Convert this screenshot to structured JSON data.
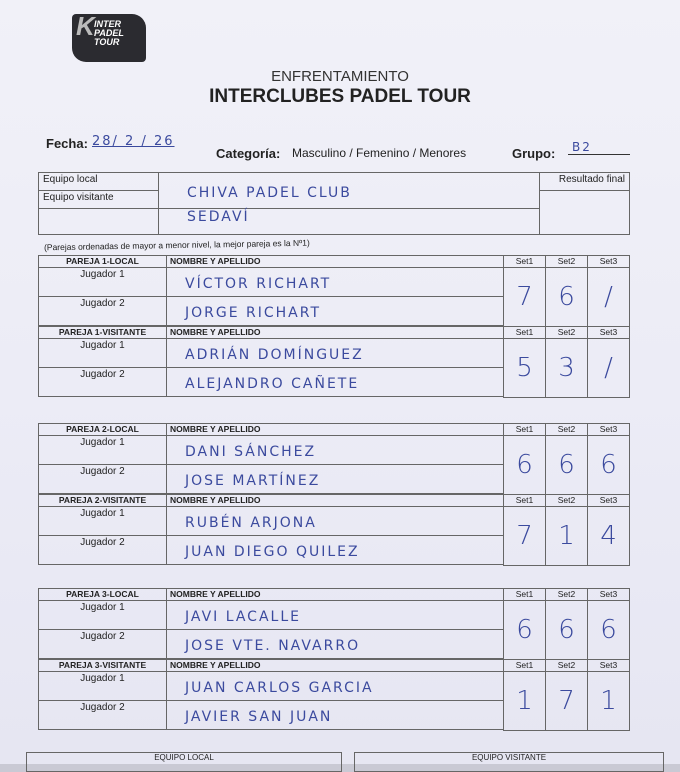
{
  "logo": {
    "text": "INTERCLUBES PADEL TOUR"
  },
  "title": {
    "line1": "ENFRENTAMIENTO",
    "line2": "INTERCLUBES PADEL TOUR"
  },
  "meta": {
    "fecha_label": "Fecha:",
    "fecha_value": "28/ 2 / 26",
    "categoria_label": "Categoría:",
    "categoria_options": "Masculino / Femenino / Menores",
    "categoria_selected": "Masculino",
    "grupo_label": "Grupo:",
    "grupo_value": "B2"
  },
  "teams": {
    "local_label": "Equipo local",
    "local_value": "CHIVA PADEL CLUB",
    "visitante_label": "Equipo visitante",
    "visitante_value": "SEDAVÍ",
    "resultado_label": "Resultado final",
    "resultado_value": ""
  },
  "note": "(Parejas ordenadas de mayor a menor nivel, la mejor pareja es la Nº1)",
  "col_name": "NOMBRE Y APELLIDO",
  "set_labels": [
    "Set1",
    "Set2",
    "Set3"
  ],
  "player1": "Jugador 1",
  "player2": "Jugador 2",
  "pairs": [
    {
      "local_label": "PAREJA 1-LOCAL",
      "local": [
        "VÍCTOR RICHART",
        "JORGE RICHART"
      ],
      "local_sets": [
        "7",
        "6",
        "/"
      ],
      "visit_label": "PAREJA 1-VISITANTE",
      "visit": [
        "ADRIÁN DOMÍNGUEZ",
        "ALEJANDRO CAÑETE"
      ],
      "visit_sets": [
        "5",
        "3",
        "/"
      ]
    },
    {
      "local_label": "PAREJA 2-LOCAL",
      "local": [
        "DANI SÁNCHEZ",
        "JOSE MARTÍNEZ"
      ],
      "local_sets": [
        "6",
        "6",
        "6"
      ],
      "visit_label": "PAREJA 2-VISITANTE",
      "visit": [
        "RUBÉN ARJONA",
        "JUAN DIEGO QUILEZ"
      ],
      "visit_sets": [
        "7",
        "1",
        "4"
      ]
    },
    {
      "local_label": "PAREJA 3-LOCAL",
      "local": [
        "JAVI LACALLE",
        "JOSE VTE. NAVARRO"
      ],
      "local_sets": [
        "6",
        "6",
        "6"
      ],
      "visit_label": "PAREJA 3-VISITANTE",
      "visit": [
        "JUAN CARLOS GARCIA",
        "JAVIER SAN JUAN"
      ],
      "visit_sets": [
        "1",
        "7",
        "1"
      ]
    }
  ],
  "bottom": {
    "local": "EQUIPO LOCAL",
    "visitante": "EQUIPO VISITANTE"
  }
}
